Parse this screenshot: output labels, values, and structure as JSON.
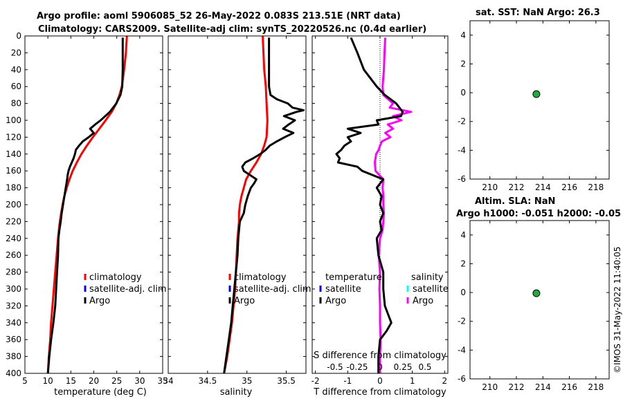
{
  "header": {
    "title_line1": "Argo profile: aoml 5906085_52 26-May-2022 0.083S 213.51E (NRT data)",
    "title_line2": "Climatology: CARS2009. Satellite-adj clim: synTS_20220526.nc (0.4d earlier)"
  },
  "side": {
    "sst_title": "sat. SST: NaN Argo: 26.3",
    "sla_title1": "Altim. SLA: NaN",
    "sla_title2": "Argo h1000: -0.051 h2000: -0.05",
    "footer": "©IMOS 31-May-2022 11:40:05"
  },
  "colors": {
    "climatology": "#ff0000",
    "satellite": "#0000ff",
    "argo": "#000000",
    "sal_diff": "#ff00ff",
    "sal_sat": "#00ffff",
    "marker": "#22aa44"
  },
  "legends": {
    "temp": [
      "climatology",
      "satellite-adj. clim",
      "Argo"
    ],
    "sal": [
      "climatology",
      "satellite-adj. clim",
      "Argo"
    ],
    "diff_left_title": "temperature",
    "diff_left": [
      "satellite",
      "Argo"
    ],
    "diff_right_title": "salinity",
    "diff_right": [
      "satellite",
      "Argo"
    ]
  },
  "chart_data": [
    {
      "type": "line",
      "name": "temperature",
      "xlabel": "temperature (deg C)",
      "ylabel": "",
      "xlim": [
        5,
        35
      ],
      "ylim": [
        0,
        400
      ],
      "xticks": [
        5,
        10,
        15,
        20,
        25,
        30,
        35
      ],
      "yticks": [
        0,
        20,
        40,
        60,
        80,
        100,
        120,
        140,
        160,
        180,
        200,
        220,
        240,
        260,
        280,
        300,
        320,
        340,
        360,
        380,
        400
      ],
      "series": [
        {
          "name": "climatology",
          "depth": [
            0,
            20,
            40,
            60,
            70,
            80,
            90,
            100,
            110,
            120,
            130,
            140,
            150,
            160,
            170,
            180,
            190,
            200,
            220,
            240,
            260,
            280,
            300,
            320,
            340,
            360,
            380,
            400
          ],
          "values": [
            27.2,
            27.0,
            26.6,
            26.1,
            25.6,
            24.9,
            23.9,
            22.6,
            21.2,
            19.8,
            18.5,
            17.3,
            16.3,
            15.4,
            14.7,
            14.1,
            13.6,
            13.2,
            12.6,
            12.2,
            11.9,
            11.6,
            11.3,
            11.0,
            10.7,
            10.5,
            10.2,
            10.0
          ]
        },
        {
          "name": "Argo",
          "depth": [
            2,
            20,
            40,
            60,
            70,
            80,
            90,
            100,
            105,
            110,
            115,
            120,
            125,
            130,
            135,
            140,
            145,
            150,
            155,
            160,
            165,
            170,
            180,
            190,
            200,
            210,
            220,
            230,
            240,
            260,
            280,
            300,
            320,
            340,
            360,
            380,
            400
          ],
          "values": [
            26.3,
            26.3,
            26.3,
            26.2,
            25.8,
            24.9,
            23.5,
            21.5,
            20.3,
            19.2,
            20.0,
            18.9,
            17.6,
            16.8,
            16.1,
            15.9,
            15.6,
            15.2,
            14.8,
            14.5,
            14.3,
            14.2,
            13.9,
            13.6,
            13.3,
            13.0,
            12.8,
            12.5,
            12.3,
            12.2,
            12.0,
            11.8,
            11.6,
            11.2,
            10.7,
            10.3,
            10.0
          ]
        }
      ]
    },
    {
      "type": "line",
      "name": "salinity",
      "xlabel": "salinity",
      "xlim": [
        34,
        35.75
      ],
      "ylim": [
        0,
        400
      ],
      "xticks": [
        34,
        34.5,
        35,
        35.5
      ],
      "series": [
        {
          "name": "climatology",
          "depth": [
            0,
            20,
            40,
            60,
            80,
            100,
            120,
            130,
            140,
            150,
            160,
            170,
            180,
            190,
            200,
            210,
            220,
            240,
            260,
            280,
            300,
            320,
            340,
            360,
            380,
            400
          ],
          "values": [
            35.2,
            35.21,
            35.22,
            35.24,
            35.25,
            35.26,
            35.25,
            35.22,
            35.18,
            35.12,
            35.05,
            34.99,
            34.96,
            34.93,
            34.91,
            34.9,
            34.9,
            34.88,
            34.87,
            34.86,
            34.85,
            34.83,
            34.81,
            34.78,
            34.75,
            34.71
          ]
        },
        {
          "name": "Argo",
          "depth": [
            2,
            20,
            40,
            60,
            70,
            75,
            80,
            85,
            88,
            90,
            95,
            100,
            105,
            110,
            115,
            120,
            125,
            130,
            135,
            140,
            145,
            150,
            155,
            160,
            165,
            170,
            175,
            180,
            185,
            190,
            200,
            210,
            220,
            230,
            240,
            260,
            280,
            300,
            320,
            340,
            360,
            380,
            400
          ],
          "values": [
            35.28,
            35.28,
            35.28,
            35.28,
            35.3,
            35.38,
            35.52,
            35.58,
            35.72,
            35.63,
            35.47,
            35.61,
            35.53,
            35.46,
            35.59,
            35.48,
            35.38,
            35.29,
            35.24,
            35.17,
            35.08,
            34.98,
            34.94,
            34.96,
            35.04,
            35.12,
            35.09,
            35.05,
            35.03,
            35.01,
            34.98,
            34.96,
            34.91,
            34.9,
            34.89,
            34.88,
            34.86,
            34.84,
            34.82,
            34.8,
            34.77,
            34.74,
            34.71
          ]
        }
      ]
    },
    {
      "type": "line",
      "name": "differences",
      "xlabel": "T difference from climatology",
      "xlim": [
        -2.1,
        2.1
      ],
      "ylim": [
        0,
        400
      ],
      "xticks": [
        -2,
        -1,
        0,
        1,
        2
      ],
      "top_axis": {
        "label": "S difference from climatology",
        "ticks": [
          "-0.5",
          "-0.25",
          "0",
          "0.25",
          "0.5"
        ]
      },
      "series": [
        {
          "name": "T difference Argo",
          "depth": [
            2,
            20,
            40,
            60,
            70,
            80,
            90,
            95,
            100,
            105,
            110,
            115,
            120,
            125,
            130,
            135,
            140,
            145,
            150,
            155,
            160,
            170,
            180,
            190,
            200,
            210,
            220,
            230,
            240,
            260,
            280,
            300,
            320,
            340,
            350,
            360,
            380,
            400
          ],
          "values": [
            -0.9,
            -0.7,
            -0.5,
            -0.1,
            0.15,
            0.5,
            0.7,
            0.65,
            -0.1,
            -0.05,
            -1.0,
            -0.6,
            -1.0,
            -0.9,
            -1.1,
            -1.2,
            -1.35,
            -1.25,
            -1.3,
            -0.7,
            -0.55,
            0.1,
            -0.1,
            0.05,
            0.0,
            0.1,
            0.0,
            0.05,
            -0.1,
            -0.05,
            0.1,
            0.1,
            0.15,
            0.35,
            0.2,
            0.0,
            -0.05,
            -0.05
          ]
        },
        {
          "name": "S difference Argo",
          "depth": [
            2,
            20,
            40,
            60,
            70,
            80,
            85,
            90,
            95,
            100,
            105,
            110,
            115,
            120,
            125,
            130,
            135,
            140,
            150,
            160,
            170,
            180,
            190,
            200,
            210,
            220,
            230,
            240,
            260,
            280,
            300,
            320,
            340,
            360,
            380,
            400
          ],
          "values": [
            0.08,
            0.07,
            0.06,
            0.04,
            0.05,
            0.2,
            0.15,
            0.48,
            0.2,
            0.33,
            0.12,
            0.2,
            0.08,
            0.16,
            0.03,
            0.0,
            -0.02,
            -0.06,
            -0.08,
            -0.07,
            0.05,
            0.04,
            0.05,
            0.05,
            0.06,
            0.05,
            0.04,
            0.0,
            -0.02,
            0.0,
            -0.01,
            0.0,
            0.0,
            0.01,
            0.0,
            0.0
          ]
        }
      ]
    },
    {
      "type": "scatter",
      "name": "sat SST",
      "xlim": [
        208.5,
        219
      ],
      "ylim": [
        -6,
        5
      ],
      "xticks": [
        210,
        212,
        214,
        216,
        218
      ],
      "yticks": [
        -6,
        -4,
        -2,
        0,
        2,
        4
      ],
      "points": [
        {
          "x": 213.51,
          "y": -0.1
        }
      ]
    },
    {
      "type": "scatter",
      "name": "Altim SLA",
      "xlim": [
        208.5,
        219
      ],
      "ylim": [
        -6,
        5
      ],
      "xticks": [
        210,
        212,
        214,
        216,
        218
      ],
      "yticks": [
        -6,
        -4,
        -2,
        0,
        2,
        4
      ],
      "points": [
        {
          "x": 213.51,
          "y": -0.05
        }
      ]
    }
  ]
}
